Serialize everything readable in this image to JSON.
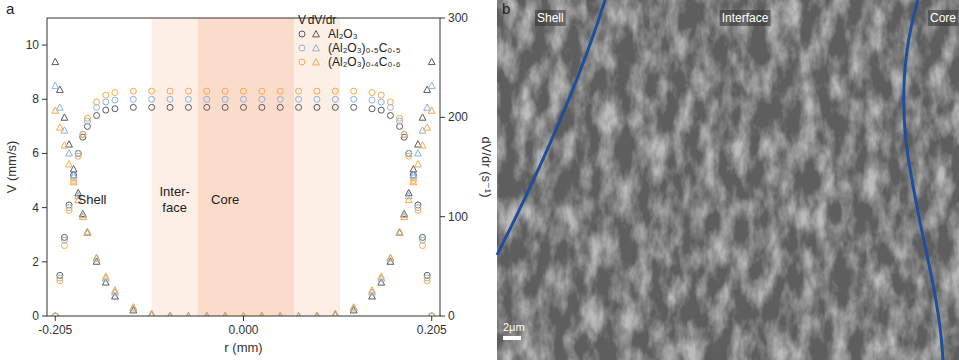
{
  "chart_data": {
    "type": "scatter",
    "panel_label": "a",
    "x_label": "r (mm)",
    "y_label": "V (mm/s)",
    "y2_label": "dV/dr (s⁻¹)",
    "xlim": [
      -0.214,
      0.214
    ],
    "ylim": [
      0,
      11
    ],
    "y2lim": [
      0,
      300
    ],
    "xticks": [
      -0.205,
      {
        "value": 0,
        "label": "0.000"
      },
      0.205
    ],
    "yticks": [
      0,
      2,
      4,
      6,
      8,
      10
    ],
    "y2ticks": [
      0,
      100,
      200,
      300
    ],
    "grid": false,
    "legend": "upper right",
    "legend_headers": [
      "V",
      "dV/dr"
    ],
    "x": [
      -0.205,
      -0.2,
      -0.195,
      -0.19,
      -0.185,
      -0.18,
      -0.175,
      -0.17,
      -0.16,
      -0.15,
      -0.14,
      -0.12,
      -0.1,
      -0.08,
      -0.06,
      -0.04,
      -0.02,
      0,
      0.02,
      0.04,
      0.06,
      0.08,
      0.1,
      0.12,
      0.14,
      0.15,
      0.16,
      0.17,
      0.175,
      0.18,
      0.185,
      0.19,
      0.195,
      0.2,
      0.205
    ],
    "series": [
      {
        "name": "Al₂O₃",
        "color": "#5a5a5a",
        "marker": "circle",
        "values": [
          0,
          1.5,
          2.9,
          4.1,
          5.2,
          6.0,
          6.6,
          7.0,
          7.4,
          7.6,
          7.65,
          7.7,
          7.7,
          7.7,
          7.7,
          7.7,
          7.7,
          7.7,
          7.7,
          7.7,
          7.7,
          7.7,
          7.7,
          7.7,
          7.65,
          7.6,
          7.4,
          7.0,
          6.6,
          6.0,
          5.2,
          4.1,
          2.9,
          1.5,
          0
        ]
      },
      {
        "name": "(Al₂O₃)₀.₅C₀.₅",
        "color": "#8ab4dc",
        "marker": "circle",
        "values": [
          0,
          1.4,
          2.8,
          4.0,
          5.1,
          6.0,
          6.7,
          7.2,
          7.7,
          7.9,
          7.97,
          8.0,
          8.0,
          8.0,
          8.0,
          8.0,
          8.0,
          8.0,
          8.0,
          8.0,
          8.0,
          8.0,
          8.0,
          8.0,
          7.97,
          7.9,
          7.7,
          7.2,
          6.7,
          6.0,
          5.1,
          4.0,
          2.8,
          1.4,
          0
        ]
      },
      {
        "name": "(Al₂O₃)₀.₄C₀.₆",
        "color": "#f7a84a",
        "marker": "circle",
        "values": [
          0,
          1.3,
          2.6,
          3.9,
          5.0,
          5.9,
          6.7,
          7.3,
          7.9,
          8.15,
          8.25,
          8.3,
          8.3,
          8.3,
          8.3,
          8.3,
          8.3,
          8.3,
          8.3,
          8.3,
          8.3,
          8.3,
          8.3,
          8.3,
          8.25,
          8.15,
          7.9,
          7.3,
          6.7,
          5.9,
          5.0,
          3.9,
          2.6,
          1.3,
          0
        ]
      },
      {
        "color": "#5a5a5a",
        "marker": "triangle",
        "axis": "y2",
        "values": [
          256,
          228,
          200,
          173,
          148,
          124,
          103,
          84,
          55,
          34,
          20,
          6,
          1.5,
          0.3,
          0,
          0,
          0,
          0,
          0,
          0,
          0,
          0.3,
          1.5,
          6,
          20,
          34,
          55,
          84,
          103,
          124,
          148,
          173,
          200,
          228,
          256
        ]
      },
      {
        "color": "#8ab4dc",
        "marker": "triangle",
        "axis": "y2",
        "values": [
          232,
          210,
          187,
          164,
          142,
          121,
          102,
          85,
          58,
          38,
          24,
          8,
          2,
          0.5,
          0,
          0,
          0,
          0,
          0,
          0,
          0,
          0.5,
          2,
          8,
          24,
          38,
          58,
          85,
          102,
          121,
          142,
          164,
          187,
          210,
          232
        ]
      },
      {
        "color": "#f7a84a",
        "marker": "triangle",
        "axis": "y2",
        "values": [
          207,
          190,
          172,
          153,
          135,
          117,
          100,
          84,
          59,
          40,
          26,
          9,
          2.5,
          0.6,
          0,
          0,
          0,
          0,
          0,
          0,
          0,
          0.6,
          2.5,
          9,
          26,
          40,
          59,
          84,
          100,
          117,
          135,
          153,
          172,
          190,
          207
        ]
      }
    ],
    "shading": [
      {
        "x0": -0.1,
        "x1": -0.05,
        "color": "#fdeee6"
      },
      {
        "x0": -0.05,
        "x1": 0.055,
        "color": "#fbdccb"
      },
      {
        "x0": 0.055,
        "x1": 0.105,
        "color": "#fdeee6"
      }
    ],
    "annotations": [
      {
        "text": "Shell",
        "x": -0.165,
        "y": 4.3
      },
      {
        "text": "Inter-\nface",
        "x": -0.075,
        "y": 4.3
      },
      {
        "text": "Core",
        "x": -0.02,
        "y": 4.3
      }
    ]
  },
  "micrograph": {
    "panel_label": "b",
    "labels": [
      "Shell",
      "Interface",
      "Core"
    ],
    "scale_bar": "2μm"
  }
}
